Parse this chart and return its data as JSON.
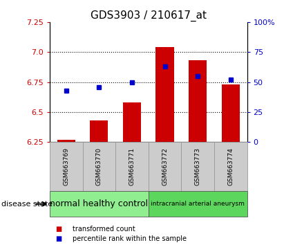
{
  "title": "GDS3903 / 210617_at",
  "samples": [
    "GSM663769",
    "GSM663770",
    "GSM663771",
    "GSM663772",
    "GSM663773",
    "GSM663774"
  ],
  "transformed_count": [
    6.27,
    6.43,
    6.58,
    7.04,
    6.93,
    6.73
  ],
  "percentile_rank": [
    43,
    46,
    50,
    63,
    55,
    52
  ],
  "ylim_left": [
    6.25,
    7.25
  ],
  "ylim_right": [
    0,
    100
  ],
  "yticks_left": [
    6.25,
    6.5,
    6.75,
    7.0,
    7.25
  ],
  "yticks_right": [
    0,
    25,
    50,
    75,
    100
  ],
  "bar_color": "#cc0000",
  "dot_color": "#0000cc",
  "bar_width": 0.55,
  "groups": [
    {
      "label": "normal healthy control",
      "indices": [
        0,
        1,
        2
      ],
      "color": "#90ee90",
      "fontsize": 9
    },
    {
      "label": "intracranial arterial aneurysm",
      "indices": [
        3,
        4,
        5
      ],
      "color": "#5cd65c",
      "fontsize": 6.5
    }
  ],
  "disease_state_label": "disease state",
  "legend_bar_label": "transformed count",
  "legend_dot_label": "percentile rank within the sample",
  "bg_color": "#ffffff",
  "plot_bg": "#ffffff",
  "sample_bg": "#cccccc",
  "grid_linestyle": ":",
  "grid_linewidth": 0.8,
  "grid_color": "#000000"
}
